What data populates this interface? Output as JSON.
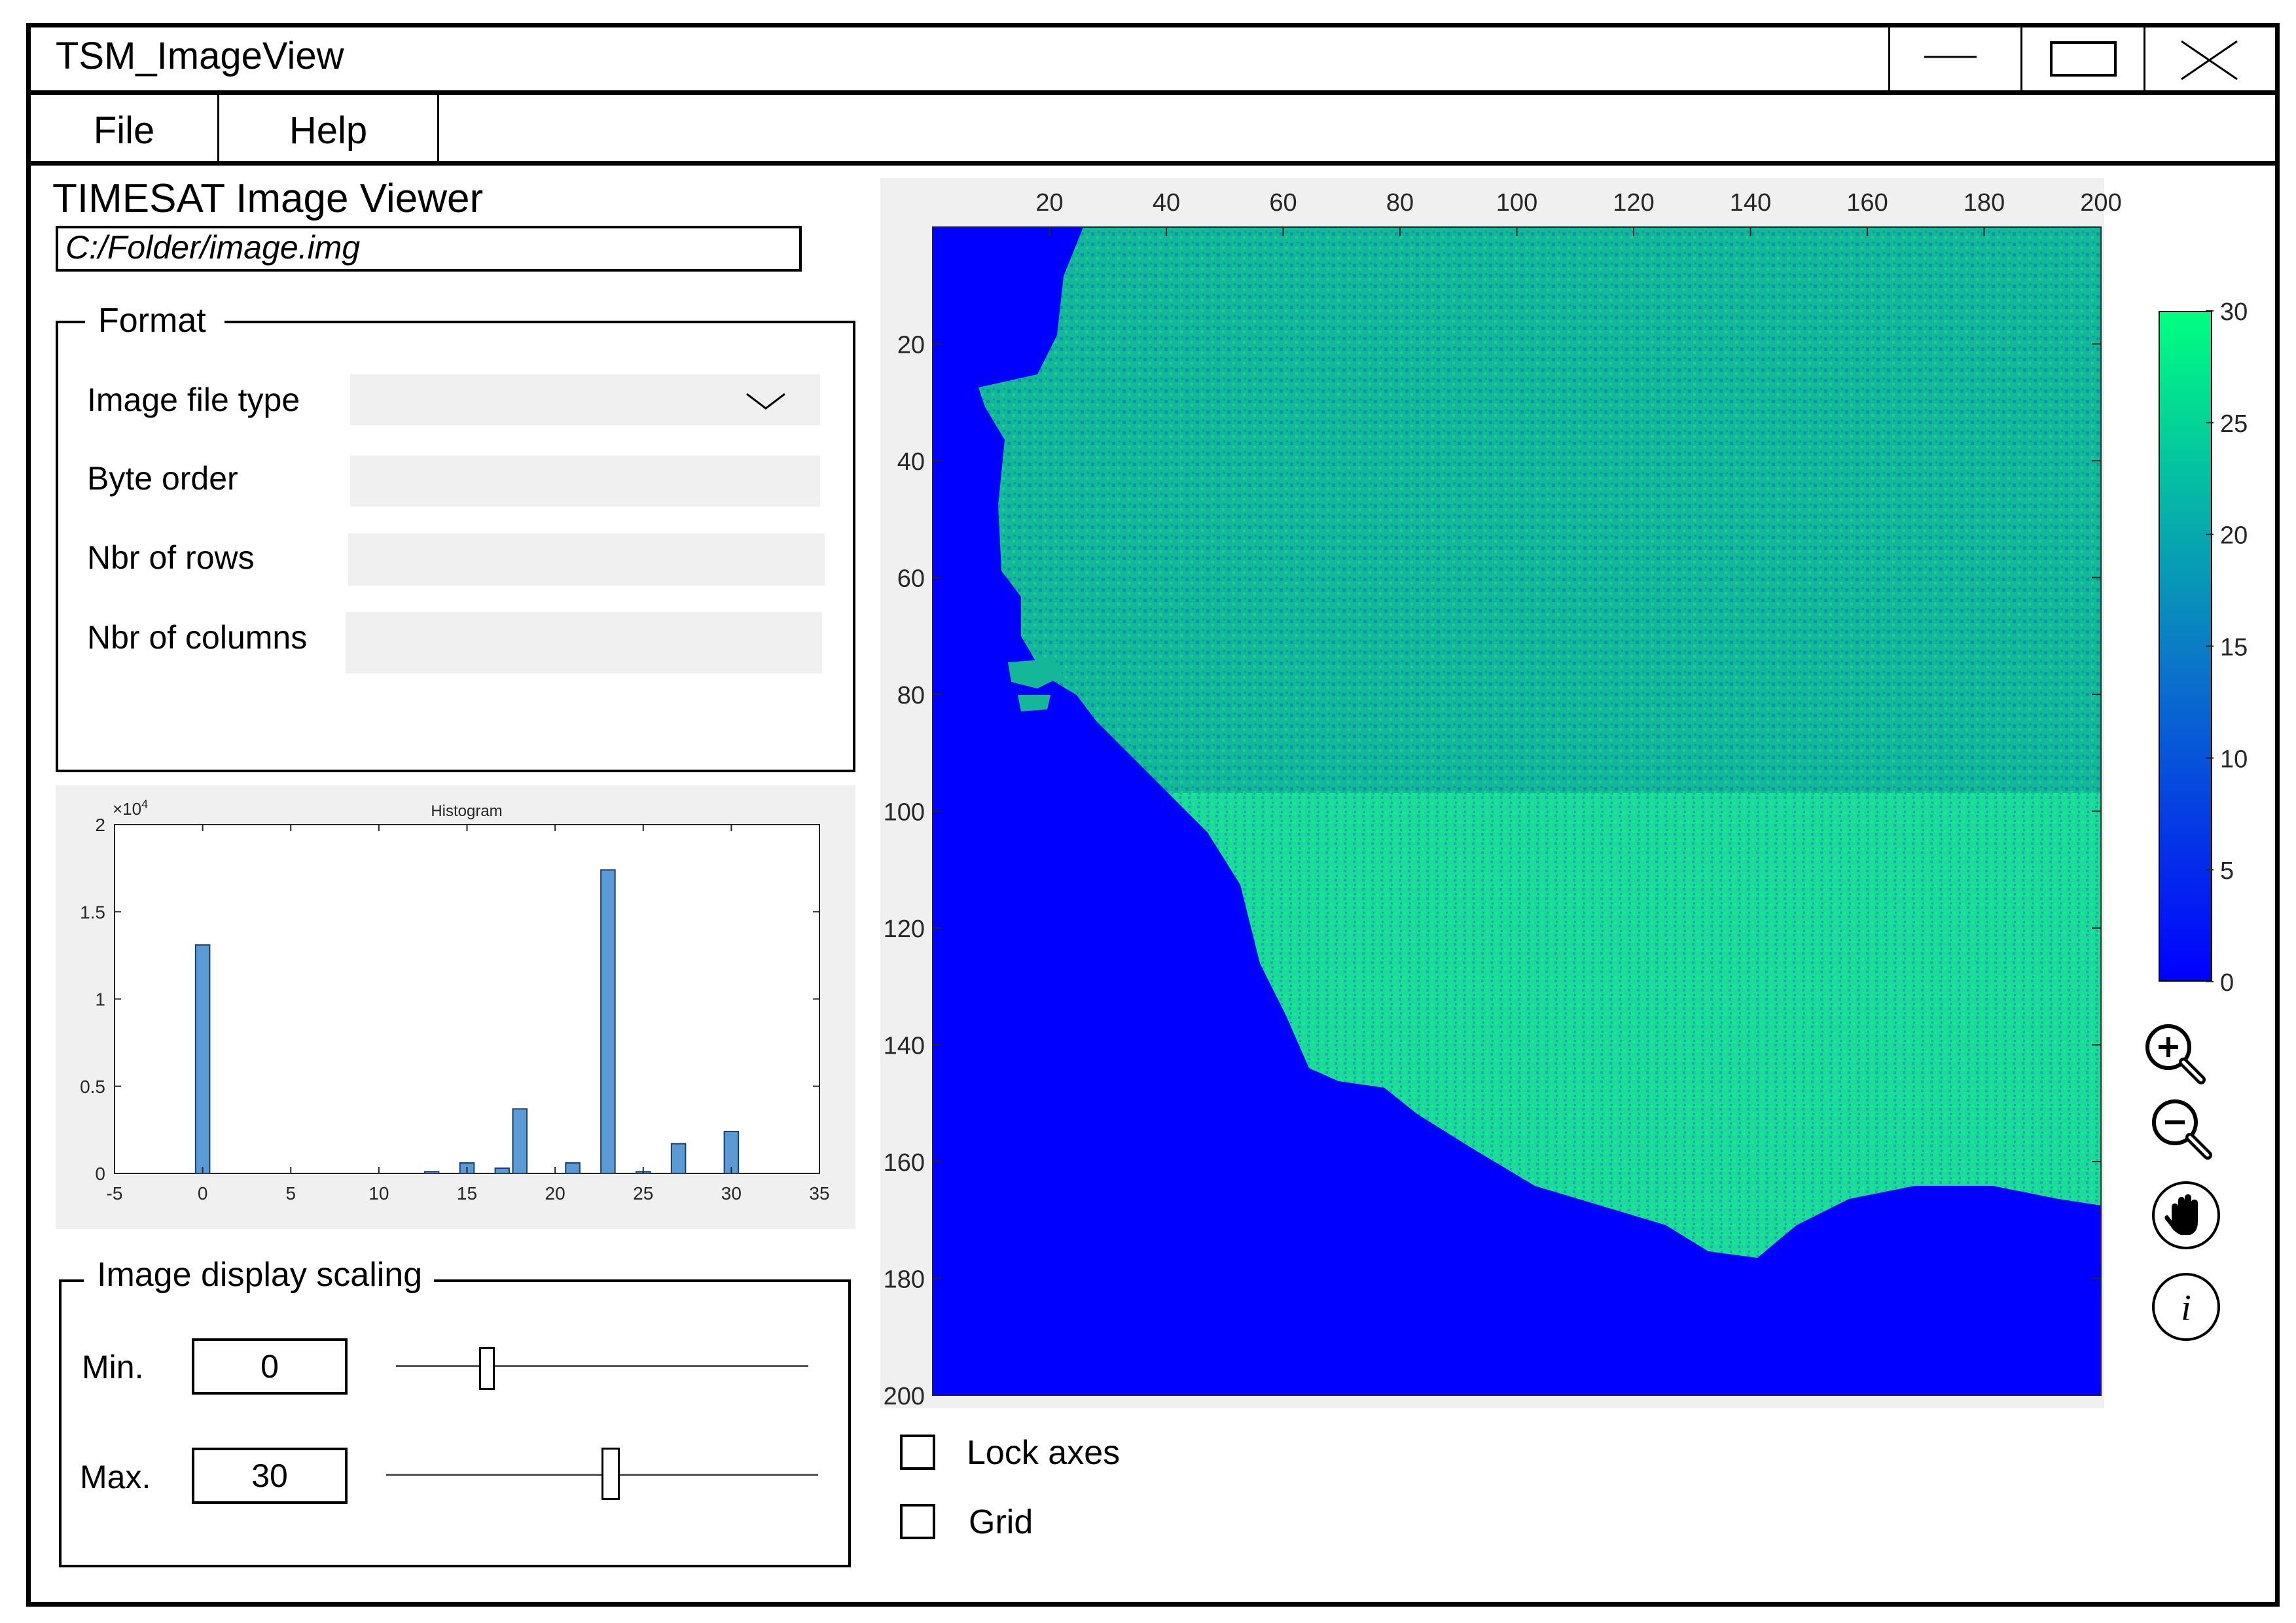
{
  "window": {
    "title": "TSM_ImageView"
  },
  "menu": {
    "items": [
      {
        "label": "File"
      },
      {
        "label": "Help"
      }
    ]
  },
  "viewer": {
    "title": "TIMESAT Image Viewer",
    "file_path": "C:/Folder/image.img"
  },
  "format": {
    "legend": "Format",
    "fields": [
      {
        "label": "Image file type",
        "value": "",
        "control": "dropdown"
      },
      {
        "label": "Byte order",
        "value": "",
        "control": "text"
      },
      {
        "label": "Nbr of rows",
        "value": "",
        "control": "text"
      },
      {
        "label": "Nbr of columns",
        "value": "",
        "control": "text"
      }
    ]
  },
  "chart_data": {
    "type": "bar",
    "title": "Histogram",
    "xlabel": "",
    "ylabel": "",
    "y_exponent_label": "×10",
    "y_exponent_power": "4",
    "xlim": [
      -5,
      35
    ],
    "ylim": [
      0,
      2
    ],
    "x_ticks": [
      "-5",
      "0",
      "5",
      "10",
      "15",
      "20",
      "25",
      "30",
      "35"
    ],
    "y_ticks": [
      "0",
      "0.5",
      "1",
      "1.5",
      "2"
    ],
    "x": [
      0,
      13,
      15,
      17,
      18,
      21,
      23,
      25,
      27,
      30
    ],
    "values": [
      1.31,
      0.01,
      0.06,
      0.03,
      0.37,
      0.06,
      1.74,
      0.01,
      0.17,
      0.24
    ],
    "bar_color": "#5b9bd5",
    "grid": false
  },
  "scaling": {
    "legend": "Image display scaling",
    "min": {
      "label": "Min.",
      "value": "0",
      "slider_fraction": 0.22
    },
    "max": {
      "label": "Max.",
      "value": "30",
      "slider_fraction": 0.52
    }
  },
  "image_view": {
    "x_ticks": [
      "20",
      "40",
      "60",
      "80",
      "100",
      "120",
      "140",
      "160",
      "180",
      "200"
    ],
    "y_ticks": [
      "20",
      "40",
      "60",
      "80",
      "100",
      "120",
      "140",
      "160",
      "180",
      "200"
    ],
    "extent": [
      200,
      200
    ],
    "colormap": {
      "low": "#0000ff",
      "mid": "#0a78c8",
      "high": "#00ff80"
    },
    "colorbar_ticks": [
      "0",
      "5",
      "10",
      "15",
      "20",
      "25",
      "30"
    ],
    "colorbar_range": [
      0,
      30
    ]
  },
  "tools": [
    "zoom-in-icon",
    "zoom-out-icon",
    "pan-hand-icon",
    "info-icon"
  ],
  "options": [
    {
      "label": "Lock axes",
      "checked": false
    },
    {
      "label": "Grid",
      "checked": false
    }
  ]
}
